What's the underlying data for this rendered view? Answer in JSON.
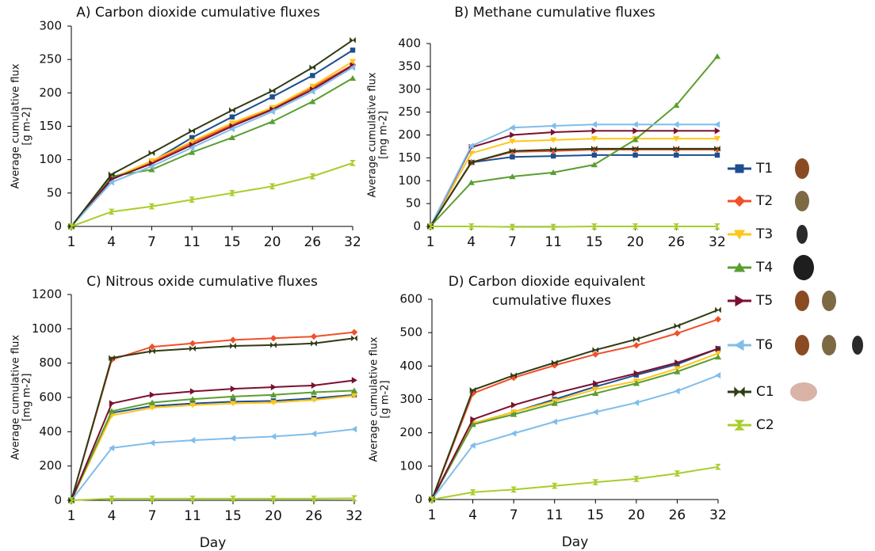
{
  "chart_data": [
    {
      "type": "line",
      "title": "A) Carbon dioxide cumulative fluxes",
      "ylabel": "Average cumulative flux",
      "yunit": "[g m-2]",
      "categories": [
        "1",
        "4",
        "7",
        "11",
        "15",
        "20",
        "26",
        "32"
      ],
      "ylim": [
        0,
        300
      ],
      "yticks": [
        0,
        50,
        100,
        150,
        200,
        250,
        300
      ],
      "series": [
        {
          "name": "T1",
          "color": "#1d4f8f",
          "marker": "square",
          "values": [
            0,
            70,
            97,
            133,
            164,
            194,
            226,
            264
          ]
        },
        {
          "name": "T2",
          "color": "#f0502a",
          "marker": "diamond",
          "values": [
            0,
            72,
            96,
            125,
            152,
            177,
            208,
            242
          ]
        },
        {
          "name": "T3",
          "color": "#ffc61a",
          "marker": "tri-down",
          "values": [
            0,
            72,
            98,
            127,
            155,
            178,
            210,
            247
          ]
        },
        {
          "name": "T4",
          "color": "#5b9e31",
          "marker": "tri-up",
          "values": [
            0,
            75,
            85,
            111,
            133,
            157,
            187,
            222
          ]
        },
        {
          "name": "T5",
          "color": "#7a1030",
          "marker": "tri-right",
          "values": [
            0,
            71,
            94,
            122,
            150,
            175,
            205,
            241
          ]
        },
        {
          "name": "T6",
          "color": "#80bdea",
          "marker": "tri-left",
          "values": [
            0,
            66,
            90,
            118,
            146,
            172,
            202,
            238
          ]
        },
        {
          "name": "C1",
          "color": "#2f3b14",
          "marker": "bowtie",
          "values": [
            0,
            78,
            110,
            143,
            174,
            203,
            238,
            279
          ]
        },
        {
          "name": "C2",
          "color": "#a9cd2c",
          "marker": "hourglass",
          "values": [
            0,
            22,
            30,
            40,
            50,
            60,
            75,
            95
          ]
        }
      ]
    },
    {
      "type": "line",
      "title": "B) Methane cumulative fluxes",
      "ylabel": "Average cumulative flux",
      "yunit": "[mg m-2]",
      "categories": [
        "1",
        "4",
        "7",
        "11",
        "15",
        "20",
        "26",
        "32"
      ],
      "ylim": [
        0,
        400
      ],
      "yticks": [
        0,
        50,
        100,
        150,
        200,
        250,
        300,
        350,
        400
      ],
      "series": [
        {
          "color": "#1d4f8f",
          "marker": "square",
          "values": [
            0,
            140,
            152,
            154,
            156,
            156,
            156,
            156
          ]
        },
        {
          "color": "#f0502a",
          "marker": "diamond",
          "values": [
            0,
            140,
            163,
            165,
            168,
            168,
            168,
            168
          ]
        },
        {
          "color": "#ffc61a",
          "marker": "tri-down",
          "values": [
            0,
            160,
            186,
            189,
            192,
            192,
            192,
            192
          ]
        },
        {
          "color": "#5b9e31",
          "marker": "tri-up",
          "values": [
            0,
            96,
            109,
            118,
            135,
            190,
            265,
            372
          ]
        },
        {
          "color": "#7a1030",
          "marker": "tri-right",
          "values": [
            0,
            173,
            200,
            206,
            209,
            209,
            209,
            209
          ]
        },
        {
          "color": "#80bdea",
          "marker": "tri-left",
          "values": [
            0,
            176,
            216,
            220,
            223,
            223,
            223,
            223
          ]
        },
        {
          "color": "#2f3b14",
          "marker": "bowtie",
          "values": [
            0,
            140,
            165,
            168,
            170,
            170,
            170,
            170
          ]
        },
        {
          "color": "#a9cd2c",
          "marker": "hourglass",
          "values": [
            0,
            0,
            -1,
            -1,
            0,
            0,
            0,
            0
          ]
        }
      ]
    },
    {
      "type": "line",
      "title": "C) Nitrous oxide cumulative fluxes",
      "ylabel": "Average cumulative flux",
      "yunit": "[mg m-2]",
      "xlabel": "Day",
      "categories": [
        "1",
        "4",
        "7",
        "11",
        "15",
        "20",
        "26",
        "32"
      ],
      "ylim": [
        0,
        1200
      ],
      "yticks": [
        0,
        200,
        400,
        600,
        800,
        1000,
        1200
      ],
      "series": [
        {
          "color": "#1d4f8f",
          "marker": "square",
          "values": [
            0,
            510,
            550,
            565,
            575,
            580,
            595,
            615
          ]
        },
        {
          "color": "#f0502a",
          "marker": "diamond",
          "values": [
            0,
            820,
            895,
            915,
            935,
            945,
            955,
            980
          ]
        },
        {
          "color": "#ffc61a",
          "marker": "tri-down",
          "values": [
            0,
            495,
            540,
            555,
            565,
            570,
            585,
            610
          ]
        },
        {
          "color": "#5b9e31",
          "marker": "tri-up",
          "values": [
            0,
            520,
            570,
            590,
            605,
            615,
            630,
            640
          ]
        },
        {
          "color": "#7a1030",
          "marker": "tri-right",
          "values": [
            0,
            565,
            615,
            635,
            650,
            660,
            670,
            700
          ]
        },
        {
          "color": "#80bdea",
          "marker": "tri-left",
          "values": [
            0,
            305,
            335,
            350,
            362,
            372,
            388,
            415
          ]
        },
        {
          "color": "#2f3b14",
          "marker": "bowtie",
          "values": [
            0,
            830,
            870,
            885,
            900,
            905,
            915,
            945
          ]
        },
        {
          "color": "#a9cd2c",
          "marker": "hourglass",
          "values": [
            0,
            10,
            10,
            10,
            10,
            10,
            10,
            12
          ]
        }
      ]
    },
    {
      "type": "line",
      "title": "D)  Carbon dioxide equivalent",
      "subtitle": "cumulative fluxes",
      "ylabel": "Average cumulative flux",
      "yunit": "[g m-2]",
      "xlabel": "Day",
      "categories": [
        "1",
        "4",
        "7",
        "11",
        "15",
        "20",
        "26",
        "32"
      ],
      "ylim": [
        0,
        600
      ],
      "yticks": [
        0,
        100,
        200,
        300,
        400,
        500,
        600
      ],
      "series": [
        {
          "color": "#1d4f8f",
          "marker": "square",
          "values": [
            0,
            228,
            262,
            300,
            338,
            373,
            405,
            452
          ]
        },
        {
          "color": "#f0502a",
          "marker": "diamond",
          "values": [
            0,
            318,
            365,
            402,
            435,
            462,
            498,
            540
          ]
        },
        {
          "color": "#ffc61a",
          "marker": "tri-down",
          "values": [
            0,
            228,
            262,
            295,
            330,
            355,
            392,
            438
          ]
        },
        {
          "color": "#5b9e31",
          "marker": "tri-up",
          "values": [
            0,
            225,
            255,
            288,
            318,
            348,
            383,
            427
          ]
        },
        {
          "color": "#7a1030",
          "marker": "tri-right",
          "values": [
            0,
            240,
            283,
            318,
            348,
            378,
            410,
            452
          ]
        },
        {
          "color": "#80bdea",
          "marker": "tri-left",
          "values": [
            0,
            162,
            198,
            233,
            262,
            290,
            325,
            372
          ]
        },
        {
          "color": "#2f3b14",
          "marker": "bowtie",
          "values": [
            0,
            328,
            372,
            410,
            448,
            480,
            520,
            568
          ]
        },
        {
          "color": "#a9cd2c",
          "marker": "hourglass",
          "values": [
            0,
            22,
            30,
            41,
            52,
            62,
            78,
            98
          ]
        }
      ]
    }
  ]
}
